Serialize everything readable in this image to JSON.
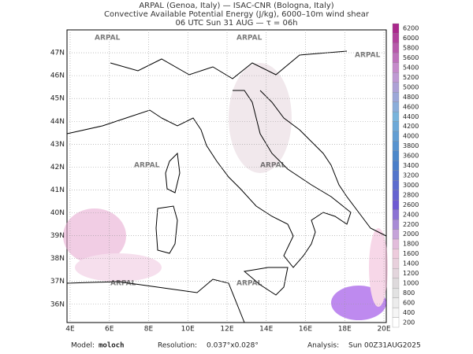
{
  "header": {
    "lines": [
      "ARPAL (Genoa, Italy)  —  ISAC-CNR (Bologna, Italy)",
      "Convective Available Potential Energy (J/kg), 6000–10m wind shear",
      "06 UTC Sun 31 AUG  —  τ = 06h"
    ]
  },
  "map": {
    "xlim": [
      3.84,
      20.12
    ],
    "ylim": [
      35.2,
      48.0
    ],
    "xticks": [
      {
        "value": 4,
        "label": "4E"
      },
      {
        "value": 6,
        "label": "6E"
      },
      {
        "value": 8,
        "label": "8E"
      },
      {
        "value": 10,
        "label": "10E"
      },
      {
        "value": 12,
        "label": "12E"
      },
      {
        "value": 14,
        "label": "14E"
      },
      {
        "value": 16,
        "label": "16E"
      },
      {
        "value": 18,
        "label": "18E"
      },
      {
        "value": 20,
        "label": "20E"
      }
    ],
    "yticks": [
      {
        "value": 36,
        "label": "36N"
      },
      {
        "value": 37,
        "label": "37N"
      },
      {
        "value": 38,
        "label": "38N"
      },
      {
        "value": 39,
        "label": "39N"
      },
      {
        "value": 40,
        "label": "40N"
      },
      {
        "value": 41,
        "label": "41N"
      },
      {
        "value": 42,
        "label": "42N"
      },
      {
        "value": 43,
        "label": "43N"
      },
      {
        "value": 44,
        "label": "44N"
      },
      {
        "value": 45,
        "label": "45N"
      },
      {
        "value": 46,
        "label": "46N"
      },
      {
        "value": 47,
        "label": "47N"
      }
    ],
    "watermark": "ARPAL"
  },
  "colorbar": {
    "levels": [
      200,
      400,
      600,
      800,
      1000,
      1200,
      1400,
      1600,
      1800,
      2000,
      2200,
      2400,
      2600,
      2800,
      3000,
      3200,
      3400,
      3600,
      3800,
      4000,
      4200,
      4400,
      4600,
      4800,
      5000,
      5200,
      5400,
      5600,
      5800,
      6000,
      6200
    ]
  },
  "footer": {
    "model_label": "Model:",
    "model": "moloch",
    "resolution_label": "Resolution:",
    "resolution": "0.037°x0.028°",
    "analysis_label": "Analysis:",
    "analysis": "Sun 00Z31AUG2025"
  }
}
